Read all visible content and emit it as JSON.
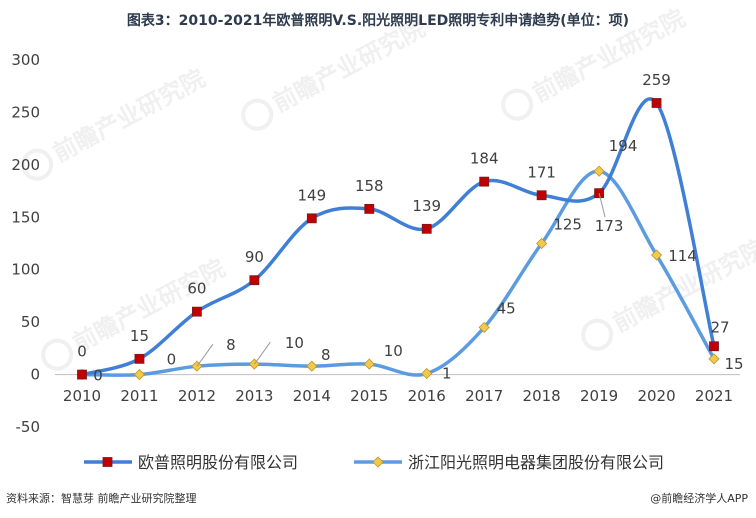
{
  "title": "图表3：2010-2021年欧普照明V.S.阳光照明LED照明专利申请趋势(单位：项)",
  "watermark": "前瞻产业研究院",
  "source": "资料来源：智慧芽 前瞻产业研究院整理",
  "credit": "@前瞻经济学人APP",
  "chart_data": {
    "type": "line",
    "title": "图表3：2010-2021年欧普照明V.S.阳光照明LED照明专利申请趋势(单位：项)",
    "xlabel": "",
    "ylabel": "",
    "categories": [
      "2010",
      "2011",
      "2012",
      "2013",
      "2014",
      "2015",
      "2016",
      "2017",
      "2018",
      "2019",
      "2020",
      "2021"
    ],
    "ylim": [
      -50,
      300
    ],
    "yticks": [
      -50,
      0,
      50,
      100,
      150,
      200,
      250,
      300
    ],
    "legend_position": "bottom",
    "grid": false,
    "smooth": true,
    "series": [
      {
        "name": "欧普照明股份有限公司",
        "color": "#3f7fd6",
        "marker": "square",
        "marker_color": "#c00000",
        "values": [
          0,
          15,
          60,
          90,
          149,
          158,
          139,
          184,
          171,
          173,
          259,
          27
        ]
      },
      {
        "name": "浙江阳光照明电器集团股份有限公司",
        "color": "#5b9be0",
        "marker": "diamond",
        "marker_color": "#f2c94c",
        "values": [
          0,
          0,
          8,
          10,
          8,
          10,
          1,
          45,
          125,
          194,
          114,
          15
        ]
      }
    ]
  }
}
